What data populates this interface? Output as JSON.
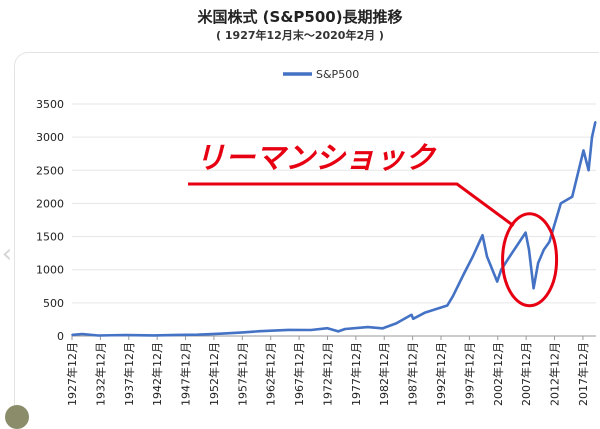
{
  "chart_data": {
    "type": "line",
    "title": "米国株式 (S&P500)長期推移",
    "subtitle": "( 1927年12月末〜2020年2月 )",
    "series": [
      {
        "name": "S&P500",
        "color": "#4472c4",
        "x": [
          1927.9,
          1929.7,
          1932.5,
          1937.2,
          1942.3,
          1946.5,
          1950,
          1954,
          1958,
          1961,
          1966,
          1970,
          1972.9,
          1974.8,
          1976,
          1980,
          1982.6,
          1985,
          1987.7,
          1988,
          1990,
          1994,
          1995,
          1997,
          1998.5,
          2000.2,
          2001,
          2002.8,
          2003.5,
          2005,
          2007.8,
          2008.4,
          2009.2,
          2010,
          2011,
          2012,
          2014,
          2016,
          2018,
          2018.9,
          2019.5,
          2020.1
        ],
        "values": [
          17,
          30,
          7,
          15,
          9,
          17,
          20,
          35,
          55,
          72,
          92,
          90,
          118,
          70,
          105,
          135,
          115,
          190,
          320,
          260,
          350,
          460,
          600,
          950,
          1200,
          1520,
          1200,
          820,
          1000,
          1200,
          1560,
          1300,
          720,
          1100,
          1300,
          1420,
          2000,
          2100,
          2800,
          2500,
          3000,
          3230
        ]
      }
    ],
    "x_tick_labels": [
      "1927年12月",
      "1932年12月",
      "1937年12月",
      "1942年12月",
      "1947年12月",
      "1952年12月",
      "1957年12月",
      "1962年12月",
      "1967年12月",
      "1972年12月",
      "1977年12月",
      "1982年12月",
      "1987年12月",
      "1992年12月",
      "1997年12月",
      "2002年12月",
      "2007年12月",
      "2012年12月",
      "2017年12月"
    ],
    "y_ticks": [
      0,
      500,
      1000,
      1500,
      2000,
      2500,
      3000,
      3500
    ],
    "xlim": [
      1927.9,
      2020.2
    ],
    "ylim": [
      0,
      3500
    ],
    "grid": "horizontal",
    "legend": "top-center",
    "annotation": {
      "text": "リーマンショック",
      "color": "#e60012",
      "target_x": 2008.5,
      "target_y": 1150
    }
  }
}
